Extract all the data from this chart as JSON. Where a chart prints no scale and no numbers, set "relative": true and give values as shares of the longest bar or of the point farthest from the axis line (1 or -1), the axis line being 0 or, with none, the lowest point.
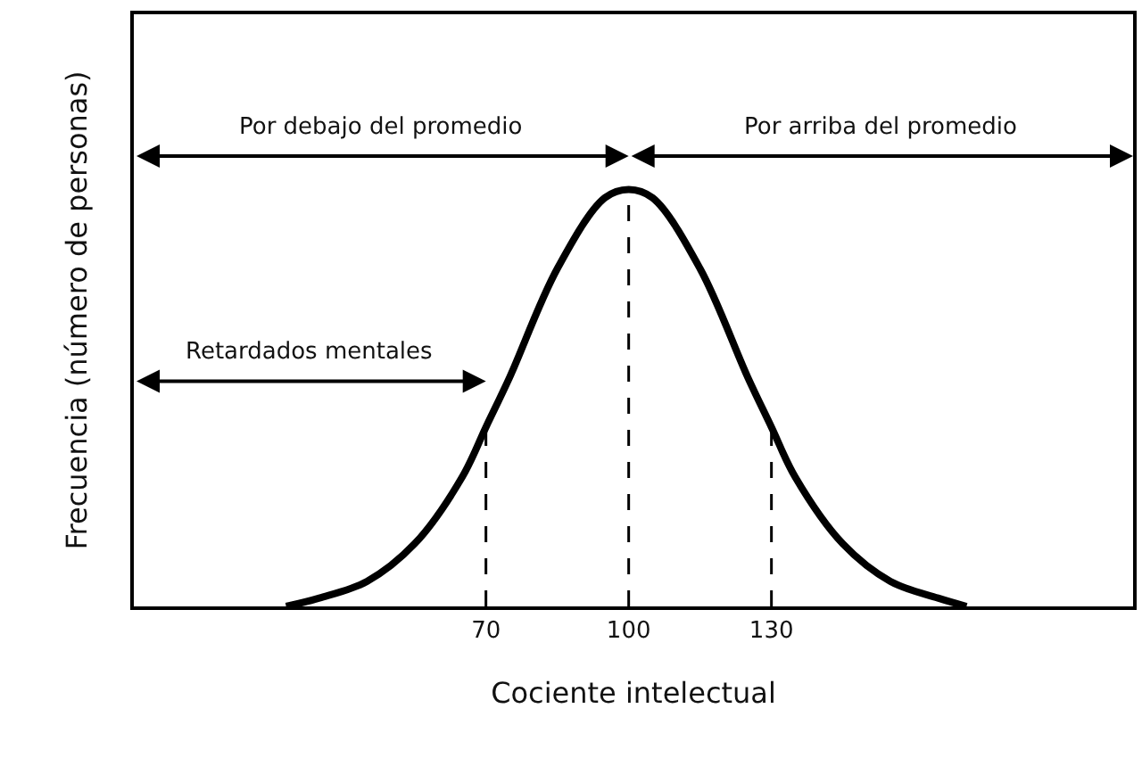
{
  "chart_data": {
    "type": "line",
    "relative": true,
    "xlabel": "Cociente intelectual",
    "ylabel": "Frecuencia (número de personas)",
    "x": [
      28,
      35,
      45,
      55,
      65,
      70,
      75,
      85,
      95,
      100,
      105,
      115,
      125,
      130,
      135,
      145,
      155,
      165,
      171
    ],
    "series": [
      {
        "color": "#000000",
        "values": [
          0,
          0.02,
          0.06,
          0.15,
          0.31,
          0.43,
          0.55,
          0.81,
          0.98,
          1,
          0.98,
          0.81,
          0.55,
          0.43,
          0.31,
          0.15,
          0.06,
          0.02,
          0
        ]
      }
    ],
    "xlim": [
      -4,
      206
    ],
    "xticks": [
      70,
      100,
      130
    ],
    "grid": false,
    "marker": "none",
    "line_style": "solid",
    "ref_lines": [
      {
        "axis": "x",
        "value": 70,
        "line_style": "dashed"
      },
      {
        "axis": "x",
        "value": 100,
        "line_style": "dashed"
      },
      {
        "axis": "x",
        "value": 130,
        "line_style": "dashed"
      }
    ],
    "annotations": [
      "Por debajo del promedio",
      "Por arriba del promedio",
      "Retardados mentales"
    ]
  }
}
